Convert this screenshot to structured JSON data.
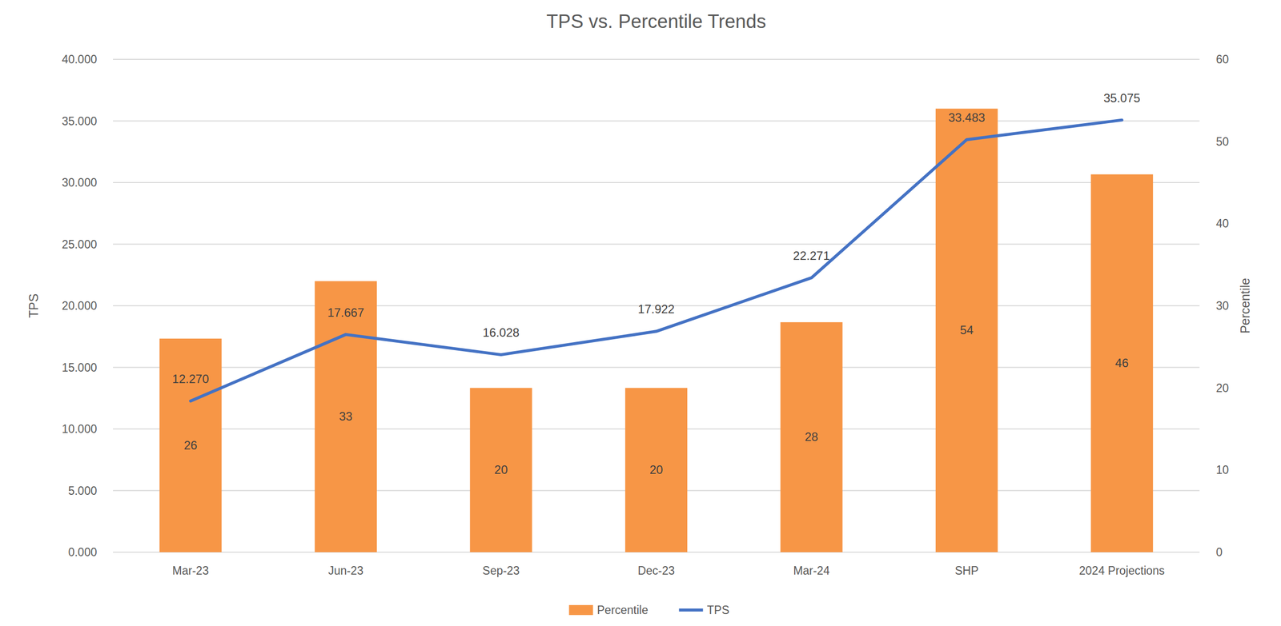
{
  "chart_data": {
    "type": "bar",
    "title": "TPS vs. Percentile Trends",
    "categories": [
      "Mar-23",
      "Jun-23",
      "Sep-23",
      "Dec-23",
      "Mar-24",
      "SHP",
      "2024 Projections"
    ],
    "series": [
      {
        "name": "Percentile",
        "type": "bar",
        "color": "#F79646",
        "axis": "y2",
        "values": [
          26,
          33,
          20,
          20,
          28,
          54,
          46
        ]
      },
      {
        "name": "TPS",
        "type": "line",
        "color": "#4472C4",
        "marker": "none",
        "line_style": "solid",
        "values": [
          12.27,
          17.667,
          16.028,
          17.922,
          22.271,
          33.483,
          35.075
        ],
        "value_labels": [
          "12.270",
          "17.667",
          "16.028",
          "17.922",
          "22.271",
          "33.483",
          "35.075"
        ]
      }
    ],
    "ylabel": "TPS",
    "y2label": "Percentile",
    "ylim": [
      0,
      40
    ],
    "yticks": [
      {
        "value": 0,
        "label": "0.000"
      },
      {
        "value": 5,
        "label": "5.000"
      },
      {
        "value": 10,
        "label": "10.000"
      },
      {
        "value": 15,
        "label": "15.000"
      },
      {
        "value": 20,
        "label": "20.000"
      },
      {
        "value": 25,
        "label": "25.000"
      },
      {
        "value": 30,
        "label": "30.000"
      },
      {
        "value": 35,
        "label": "35.000"
      },
      {
        "value": 40,
        "label": "40.000"
      }
    ],
    "y2lim": [
      0,
      60
    ],
    "y2ticks": [
      0,
      10,
      20,
      30,
      40,
      50,
      60
    ],
    "grid": true,
    "legend": "bottom",
    "data_labels": true
  }
}
